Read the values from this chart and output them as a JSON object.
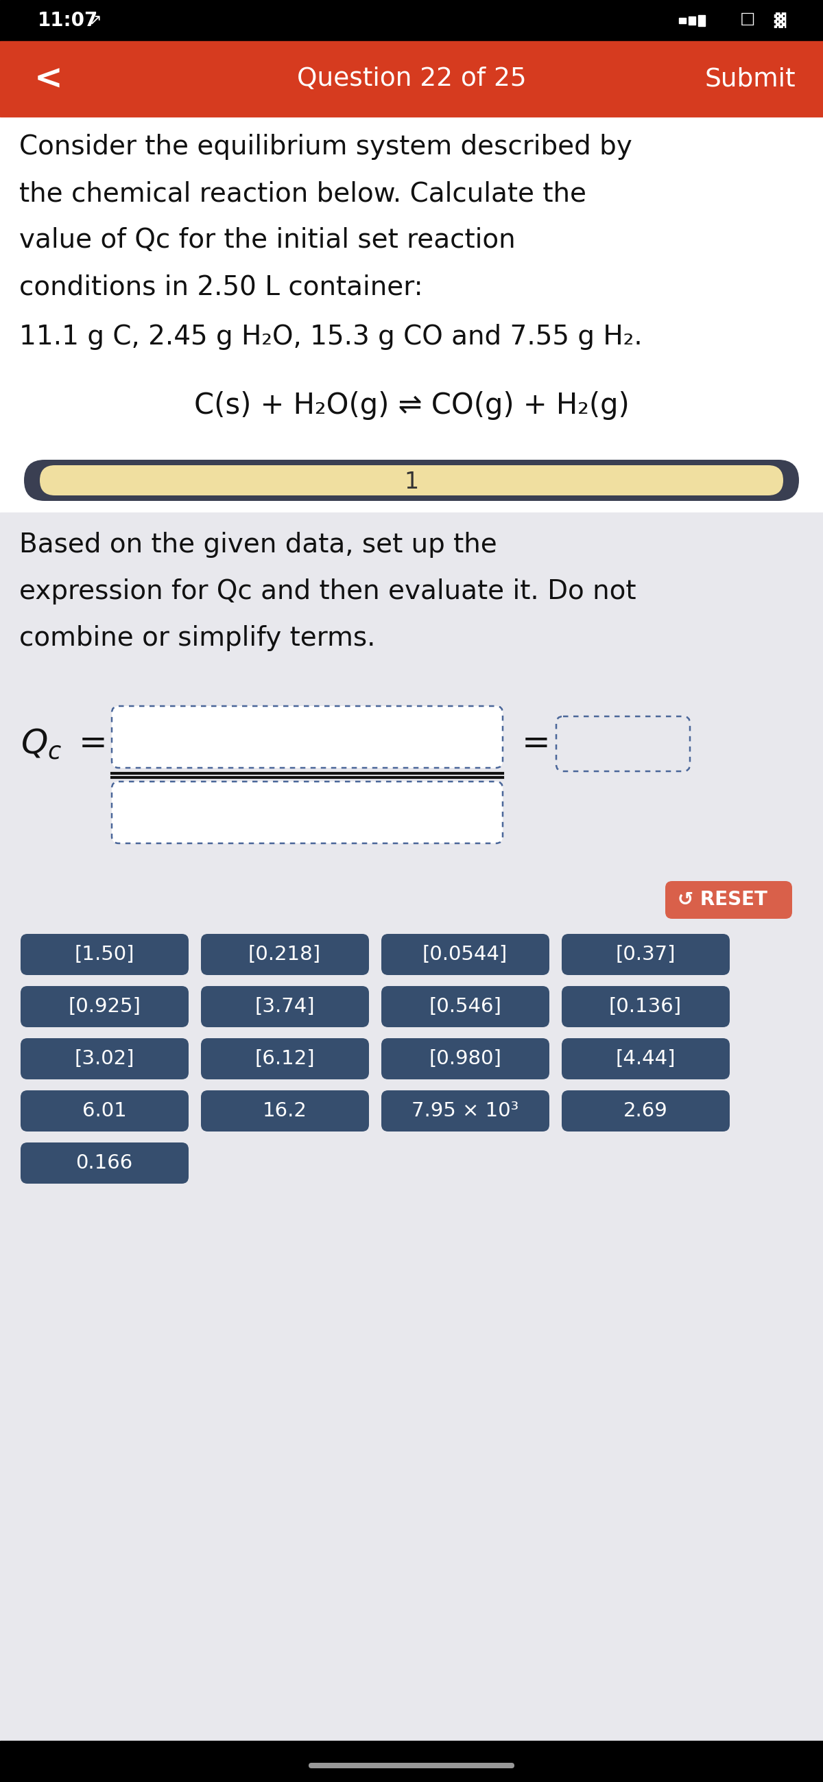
{
  "status_bar_text": "11:07 ↗",
  "nav_title": "Question 22 of 25",
  "nav_submit": "Submit",
  "question_text_lines": [
    "Consider the equilibrium system described by",
    "the chemical reaction below. Calculate the",
    "value of Qc for the initial set reaction",
    "conditions in 2.50 L container:"
  ],
  "conditions_line": "11.1 g C, 2.45 g H₂O, 15.3 g CO and 7.55 g H₂.",
  "reaction": "C(s) + H₂O(g) ⇌ CO(g) + H₂(g)",
  "progress_label": "1",
  "instruction_lines": [
    "Based on the given data, set up the",
    "expression for Qc and then evaluate it. Do not",
    "combine or simplify terms."
  ],
  "bg_color": "#e8e8ed",
  "header_bg": "#d63b1f",
  "status_bar_bg": "#000000",
  "white_bg": "#ffffff",
  "progress_bar_outer": "#3a3f52",
  "progress_bar_inner": "#f0dfa0",
  "button_bg": "#364e6e",
  "reset_btn_color": "#d9604a",
  "buttons_row1": [
    "[1.50]",
    "[0.218]",
    "[0.0544]",
    "[0.37]"
  ],
  "buttons_row2": [
    "[0.925]",
    "[3.74]",
    "[0.546]",
    "[0.136]"
  ],
  "buttons_row3": [
    "[3.02]",
    "[6.12]",
    "[0.980]",
    "[4.44]"
  ],
  "buttons_row4": [
    "6.01",
    "16.2",
    "7.95 × 10³",
    "2.69"
  ],
  "buttons_row5": [
    "0.166"
  ]
}
